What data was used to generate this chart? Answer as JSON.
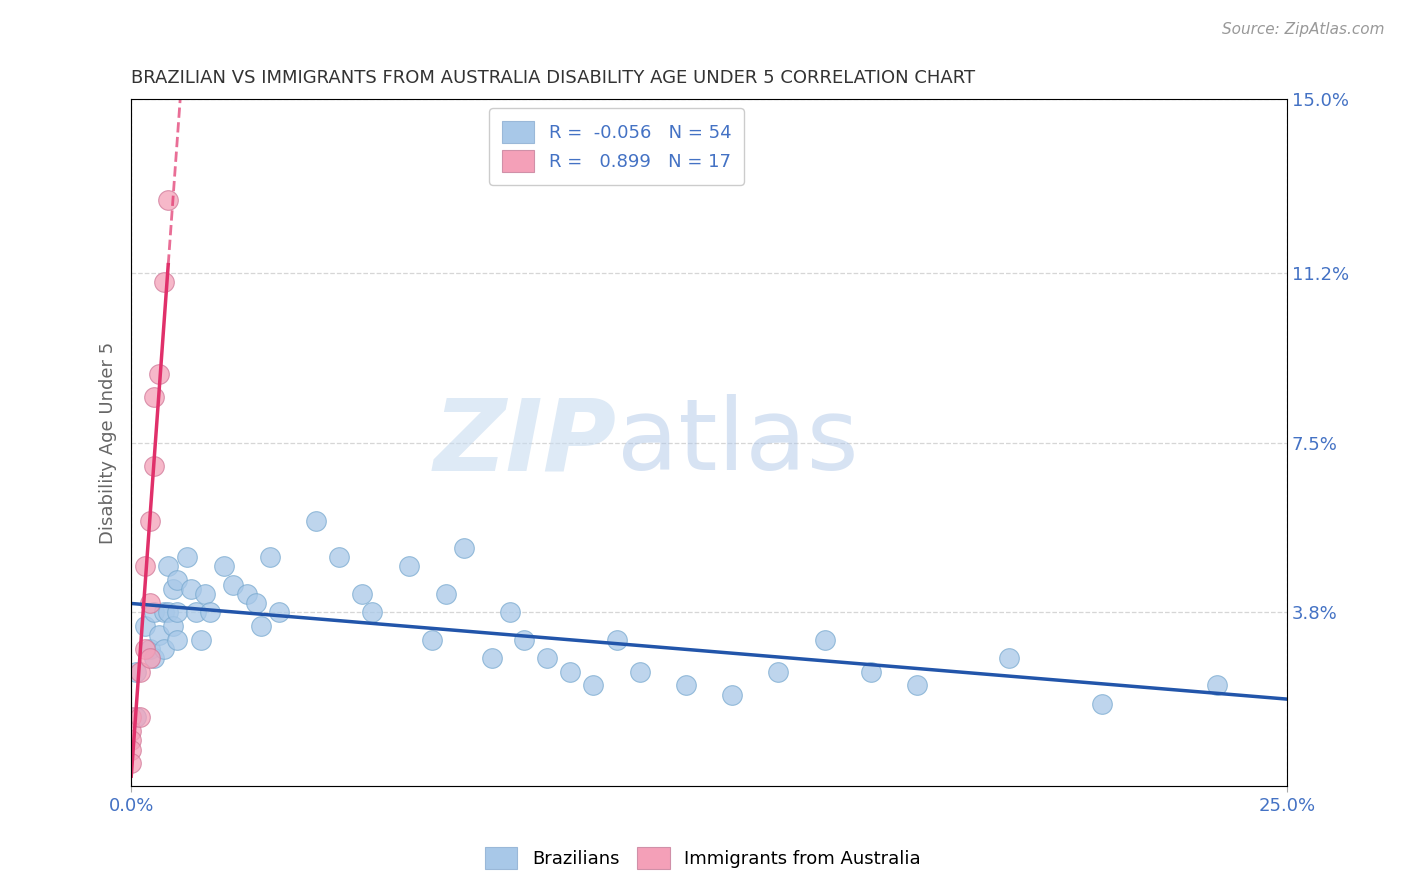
{
  "title": "BRAZILIAN VS IMMIGRANTS FROM AUSTRALIA DISABILITY AGE UNDER 5 CORRELATION CHART",
  "source": "Source: ZipAtlas.com",
  "ylabel": "Disability Age Under 5",
  "xlim": [
    0.0,
    0.25
  ],
  "ylim": [
    0.0,
    0.15
  ],
  "xticks": [
    0.0,
    0.25
  ],
  "xticklabels": [
    "0.0%",
    "25.0%"
  ],
  "yticks": [
    0.038,
    0.075,
    0.112,
    0.15
  ],
  "yticklabels": [
    "3.8%",
    "7.5%",
    "11.2%",
    "15.0%"
  ],
  "r_brazilian": -0.056,
  "n_brazilian": 54,
  "r_australia": 0.899,
  "n_australia": 17,
  "color_brazilian": "#a8c8e8",
  "color_australia": "#f4a0b8",
  "line_color_brazilian": "#2255aa",
  "line_color_australia": "#e0306a",
  "watermark_zip": "ZIP",
  "watermark_atlas": "atlas",
  "brazilians_x": [
    0.001,
    0.001,
    0.003,
    0.004,
    0.005,
    0.005,
    0.006,
    0.007,
    0.007,
    0.008,
    0.008,
    0.009,
    0.009,
    0.01,
    0.01,
    0.01,
    0.012,
    0.013,
    0.014,
    0.015,
    0.016,
    0.017,
    0.02,
    0.022,
    0.025,
    0.027,
    0.028,
    0.03,
    0.032,
    0.04,
    0.045,
    0.05,
    0.052,
    0.06,
    0.065,
    0.068,
    0.072,
    0.078,
    0.082,
    0.085,
    0.09,
    0.095,
    0.1,
    0.105,
    0.11,
    0.12,
    0.13,
    0.14,
    0.15,
    0.16,
    0.17,
    0.19,
    0.21,
    0.235
  ],
  "brazilians_y": [
    0.025,
    0.015,
    0.035,
    0.03,
    0.038,
    0.028,
    0.033,
    0.038,
    0.03,
    0.048,
    0.038,
    0.043,
    0.035,
    0.045,
    0.038,
    0.032,
    0.05,
    0.043,
    0.038,
    0.032,
    0.042,
    0.038,
    0.048,
    0.044,
    0.042,
    0.04,
    0.035,
    0.05,
    0.038,
    0.058,
    0.05,
    0.042,
    0.038,
    0.048,
    0.032,
    0.042,
    0.052,
    0.028,
    0.038,
    0.032,
    0.028,
    0.025,
    0.022,
    0.032,
    0.025,
    0.022,
    0.02,
    0.025,
    0.032,
    0.025,
    0.022,
    0.028,
    0.018,
    0.022
  ],
  "australia_x": [
    0.0,
    0.0,
    0.0,
    0.0,
    0.0,
    0.002,
    0.002,
    0.003,
    0.003,
    0.004,
    0.004,
    0.004,
    0.005,
    0.005,
    0.006,
    0.007,
    0.008
  ],
  "australia_y": [
    0.015,
    0.012,
    0.01,
    0.008,
    0.005,
    0.025,
    0.015,
    0.048,
    0.03,
    0.058,
    0.04,
    0.028,
    0.085,
    0.07,
    0.09,
    0.11,
    0.128
  ]
}
